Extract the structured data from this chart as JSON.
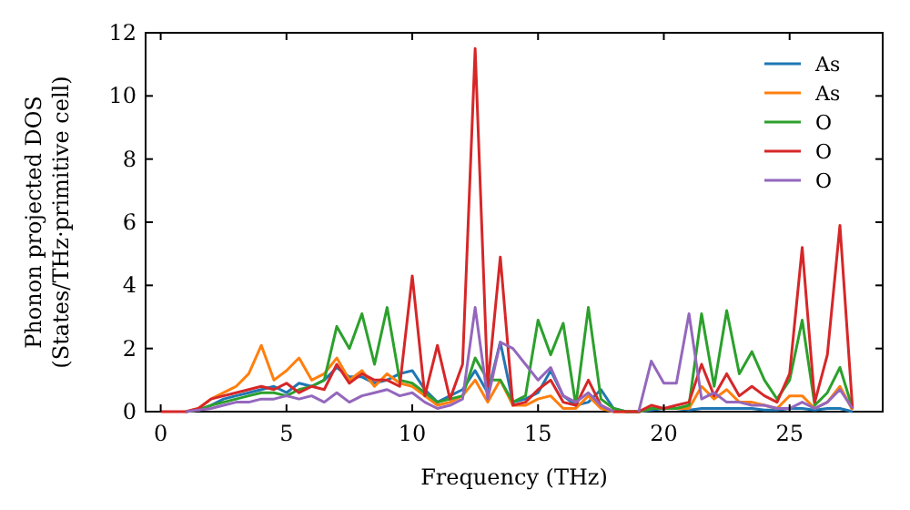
{
  "chart_data": {
    "type": "line",
    "xlabel": "Frequency (THz)",
    "ylabel": "Phonon projected DOS\n(States/THz·primitive cell)",
    "xlim": [
      -0.6,
      28.7
    ],
    "ylim": [
      0,
      12
    ],
    "xticks": [
      0,
      5,
      10,
      15,
      20,
      25
    ],
    "yticks": [
      0,
      2,
      4,
      6,
      8,
      10,
      12
    ],
    "legend": "top right",
    "grid": false,
    "line_style": "solid",
    "marker": "none",
    "x": [
      0,
      0.5,
      1,
      1.5,
      2,
      2.5,
      3,
      3.5,
      4,
      4.5,
      5,
      5.5,
      6,
      6.5,
      7,
      7.5,
      8,
      8.5,
      9,
      9.5,
      10,
      10.5,
      11,
      11.5,
      12,
      12.5,
      13,
      13.5,
      14,
      14.5,
      15,
      15.5,
      16,
      16.5,
      17,
      17.5,
      18,
      18.5,
      19,
      19.5,
      20,
      20.5,
      21,
      21.5,
      22,
      22.5,
      23,
      23.5,
      24,
      24.5,
      25,
      25.5,
      26,
      26.5,
      27,
      27.5
    ],
    "series": [
      {
        "name": "As",
        "color": "#1f77b4",
        "values": [
          null,
          null,
          null,
          0.05,
          0.2,
          0.4,
          0.5,
          0.6,
          0.7,
          0.8,
          0.6,
          0.9,
          0.8,
          1.0,
          1.4,
          1.1,
          1.1,
          0.9,
          1.0,
          1.2,
          1.3,
          0.7,
          0.3,
          0.5,
          0.7,
          1.3,
          0.6,
          2.2,
          0.3,
          0.4,
          0.6,
          1.3,
          0.5,
          0.2,
          0.3,
          0.7,
          0.1,
          0,
          0,
          0.05,
          0.1,
          0.1,
          0.05,
          0.1,
          0.1,
          0.1,
          0.1,
          0.1,
          0.05,
          0.05,
          0.1,
          0.1,
          0.05,
          0.1,
          0.1,
          0
        ]
      },
      {
        "name": "As",
        "color": "#ff7f0e",
        "values": [
          null,
          null,
          0,
          0.1,
          0.4,
          0.6,
          0.8,
          1.2,
          2.1,
          1.0,
          1.3,
          1.7,
          1.0,
          1.2,
          1.7,
          1.0,
          1.3,
          0.8,
          1.2,
          0.9,
          0.8,
          0.5,
          0.2,
          0.3,
          0.5,
          1.0,
          0.3,
          1.0,
          0.2,
          0.2,
          0.4,
          0.5,
          0.1,
          0.1,
          0.5,
          0.1,
          0,
          0,
          0,
          0.1,
          0.1,
          0.1,
          0.1,
          0.8,
          0.4,
          0.7,
          0.3,
          0.3,
          0.2,
          0.1,
          0.5,
          0.5,
          0.1,
          0.3,
          0.8,
          0.05
        ]
      },
      {
        "name": "O",
        "color": "#2ca02c",
        "values": [
          null,
          null,
          0,
          0.05,
          0.2,
          0.3,
          0.4,
          0.5,
          0.6,
          0.6,
          0.5,
          0.7,
          0.8,
          1.0,
          2.7,
          2.0,
          3.1,
          1.5,
          3.3,
          1.0,
          0.9,
          0.6,
          0.3,
          0.4,
          0.5,
          1.7,
          1.0,
          1.0,
          0.3,
          0.5,
          2.9,
          1.8,
          2.8,
          0.2,
          3.3,
          0.4,
          0.1,
          0,
          0,
          0.1,
          0.1,
          0.1,
          0.2,
          3.1,
          0.8,
          3.2,
          1.2,
          1.9,
          1.0,
          0.4,
          1.0,
          2.9,
          0.2,
          0.6,
          1.4,
          0.1
        ]
      },
      {
        "name": "O",
        "color": "#d62728",
        "values": [
          0,
          0,
          0,
          0.1,
          0.4,
          0.5,
          0.6,
          0.7,
          0.8,
          0.7,
          0.9,
          0.6,
          0.8,
          0.7,
          1.5,
          0.9,
          1.2,
          1.0,
          1.0,
          0.8,
          4.3,
          0.5,
          2.1,
          0.4,
          1.5,
          11.5,
          0.8,
          4.9,
          0.2,
          0.3,
          0.7,
          1.0,
          0.3,
          0.2,
          1.0,
          0.2,
          0,
          0,
          0,
          0.2,
          0.1,
          0.2,
          0.3,
          1.5,
          0.5,
          1.2,
          0.5,
          0.8,
          0.5,
          0.3,
          1.2,
          5.2,
          0.3,
          1.8,
          5.9,
          0.1
        ]
      },
      {
        "name": "O",
        "color": "#9467bd",
        "values": [
          null,
          null,
          0,
          0.05,
          0.1,
          0.2,
          0.3,
          0.3,
          0.4,
          0.4,
          0.5,
          0.4,
          0.5,
          0.3,
          0.6,
          0.3,
          0.5,
          0.6,
          0.7,
          0.5,
          0.6,
          0.3,
          0.1,
          0.2,
          0.4,
          3.3,
          0.4,
          2.2,
          2.0,
          1.5,
          1.0,
          1.4,
          0.5,
          0.3,
          0.6,
          0.2,
          0,
          null,
          0,
          1.6,
          0.9,
          0.9,
          3.1,
          0.4,
          0.6,
          0.3,
          0.3,
          0.2,
          0.2,
          0.1,
          0.1,
          0.3,
          0.1,
          0.3,
          0.7,
          0.1
        ]
      }
    ]
  }
}
